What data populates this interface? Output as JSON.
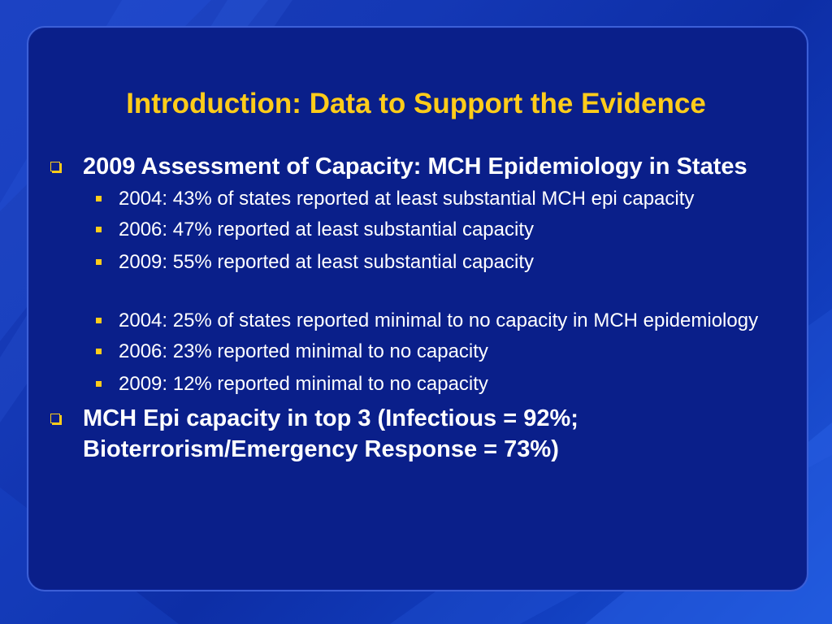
{
  "slide": {
    "title": "Introduction: Data to Support the Evidence",
    "colors": {
      "title": "#ffcc1a",
      "text": "#ffffff",
      "bullet": "#ffcc1a",
      "panel": "#0a1f8a",
      "background": "#1438b5"
    }
  },
  "bullets": [
    {
      "text": "2009 Assessment of Capacity: MCH Epidemiology in States",
      "icon": "hollow-square-bullet-icon",
      "sub": [
        {
          "text": "2004: 43% of states reported at least substantial MCH epi capacity",
          "icon": "square-bullet-icon"
        },
        {
          "text": "2006: 47% reported at least substantial capacity",
          "icon": "square-bullet-icon"
        },
        {
          "text": "2009: 55% reported at least substantial capacity",
          "icon": "square-bullet-icon"
        },
        {
          "text": "2004: 25% of states reported minimal to no capacity in MCH epidemiology",
          "icon": "square-bullet-icon"
        },
        {
          "text": "2006: 23% reported minimal to no capacity",
          "icon": "square-bullet-icon"
        },
        {
          "text": "2009: 12% reported minimal to no capacity",
          "icon": "square-bullet-icon"
        }
      ]
    },
    {
      "text": "MCH Epi capacity in top 3 (Infectious = 92%; Bioterrorism/Emergency Response = 73%)",
      "icon": "hollow-square-bullet-icon",
      "sub": []
    }
  ]
}
